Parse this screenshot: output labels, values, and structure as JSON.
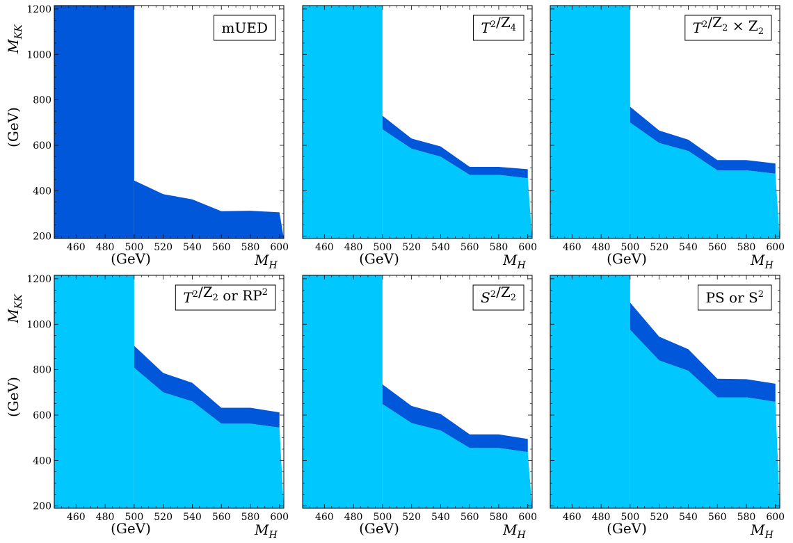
{
  "figure": {
    "colors": {
      "allowed_region": "#00c8ff",
      "uncertainty_band": "#0057d9",
      "frame": "#000000"
    },
    "y_axis_title_main": "M",
    "y_axis_title_sub": "KK",
    "y_axis_unit": "(GeV)",
    "x_axis_title_main": "M",
    "x_axis_title_sub": "H",
    "x_axis_unit": "(GeV)"
  },
  "chart_data": [
    {
      "type": "area",
      "label": {
        "parts": [
          {
            "text": "mUED"
          }
        ]
      },
      "xlim": [
        445,
        603
      ],
      "ylim": [
        190,
        1215
      ],
      "x_ticks": [
        460,
        480,
        500,
        520,
        540,
        560,
        580,
        600
      ],
      "y_ticks": [
        200,
        400,
        600,
        800,
        1000,
        1200
      ],
      "grid": false,
      "legend_position": "top-right",
      "vertical_cut_x": 500,
      "x": [
        500,
        520,
        540,
        560,
        580,
        600
      ],
      "lower": [
        445,
        385,
        362,
        310,
        312,
        305
      ],
      "upper": [
        445,
        385,
        362,
        310,
        312,
        305
      ],
      "lower_region_color": "uncertainty_band"
    },
    {
      "type": "area",
      "label": {
        "parts": [
          {
            "text": "T",
            "sup": "2"
          },
          {
            "text": "/Z",
            "sub": "4"
          }
        ]
      },
      "xlim": [
        445,
        603
      ],
      "ylim": [
        190,
        1215
      ],
      "x_ticks": [
        460,
        480,
        500,
        520,
        540,
        560,
        580,
        600
      ],
      "y_ticks": [
        200,
        400,
        600,
        800,
        1000,
        1200
      ],
      "grid": false,
      "legend_position": "top-right",
      "vertical_cut_x": 500,
      "x": [
        500,
        520,
        540,
        560,
        580,
        600
      ],
      "lower": [
        670,
        585,
        550,
        470,
        470,
        455
      ],
      "upper": [
        730,
        630,
        595,
        505,
        505,
        495
      ],
      "lower_region_color": "allowed_region"
    },
    {
      "type": "area",
      "label": {
        "parts": [
          {
            "text": "T",
            "sup": "2"
          },
          {
            "text": "/Z",
            "sub": "2"
          },
          {
            "text": " × Z",
            "sub": "2"
          }
        ]
      },
      "xlim": [
        445,
        603
      ],
      "ylim": [
        190,
        1215
      ],
      "x_ticks": [
        460,
        480,
        500,
        520,
        540,
        560,
        580,
        600
      ],
      "y_ticks": [
        200,
        400,
        600,
        800,
        1000,
        1200
      ],
      "grid": false,
      "legend_position": "top-right",
      "vertical_cut_x": 500,
      "x": [
        500,
        520,
        540,
        560,
        580,
        600
      ],
      "lower": [
        700,
        610,
        575,
        490,
        490,
        475
      ],
      "upper": [
        770,
        665,
        625,
        535,
        535,
        520
      ],
      "lower_region_color": "allowed_region"
    },
    {
      "type": "area",
      "label": {
        "parts": [
          {
            "text": "T",
            "sup": "2"
          },
          {
            "text": "/Z",
            "sub": "2"
          },
          {
            "text": " or RP",
            "sup": "2"
          }
        ]
      },
      "xlim": [
        445,
        603
      ],
      "ylim": [
        190,
        1215
      ],
      "x_ticks": [
        460,
        480,
        500,
        520,
        540,
        560,
        580,
        600
      ],
      "y_ticks": [
        200,
        400,
        600,
        800,
        1000,
        1200
      ],
      "grid": false,
      "legend_position": "top-right",
      "vertical_cut_x": 500,
      "x": [
        500,
        520,
        540,
        560,
        580,
        600
      ],
      "lower": [
        808,
        700,
        660,
        562,
        562,
        545
      ],
      "upper": [
        905,
        785,
        742,
        632,
        632,
        612
      ],
      "lower_region_color": "allowed_region"
    },
    {
      "type": "area",
      "label": {
        "parts": [
          {
            "text": "S",
            "sup": "2"
          },
          {
            "text": "/Z",
            "sub": "2"
          }
        ]
      },
      "xlim": [
        445,
        603
      ],
      "ylim": [
        190,
        1215
      ],
      "x_ticks": [
        460,
        480,
        500,
        520,
        540,
        560,
        580,
        600
      ],
      "y_ticks": [
        200,
        400,
        600,
        800,
        1000,
        1200
      ],
      "grid": false,
      "legend_position": "top-right",
      "vertical_cut_x": 500,
      "x": [
        500,
        520,
        540,
        560,
        580,
        600
      ],
      "lower": [
        648,
        565,
        532,
        455,
        455,
        437
      ],
      "upper": [
        735,
        640,
        605,
        515,
        515,
        495
      ],
      "lower_region_color": "allowed_region"
    },
    {
      "type": "area",
      "label": {
        "parts": [
          {
            "text": "PS or S",
            "sup": "2"
          }
        ]
      },
      "xlim": [
        445,
        603
      ],
      "ylim": [
        190,
        1215
      ],
      "x_ticks": [
        460,
        480,
        500,
        520,
        540,
        560,
        580,
        600
      ],
      "y_ticks": [
        200,
        400,
        600,
        800,
        1000,
        1200
      ],
      "grid": false,
      "legend_position": "top-right",
      "vertical_cut_x": 500,
      "x": [
        500,
        520,
        540,
        560,
        580,
        600
      ],
      "lower": [
        975,
        840,
        795,
        678,
        678,
        658
      ],
      "upper": [
        1095,
        945,
        890,
        760,
        758,
        738
      ],
      "lower_region_color": "allowed_region"
    }
  ]
}
